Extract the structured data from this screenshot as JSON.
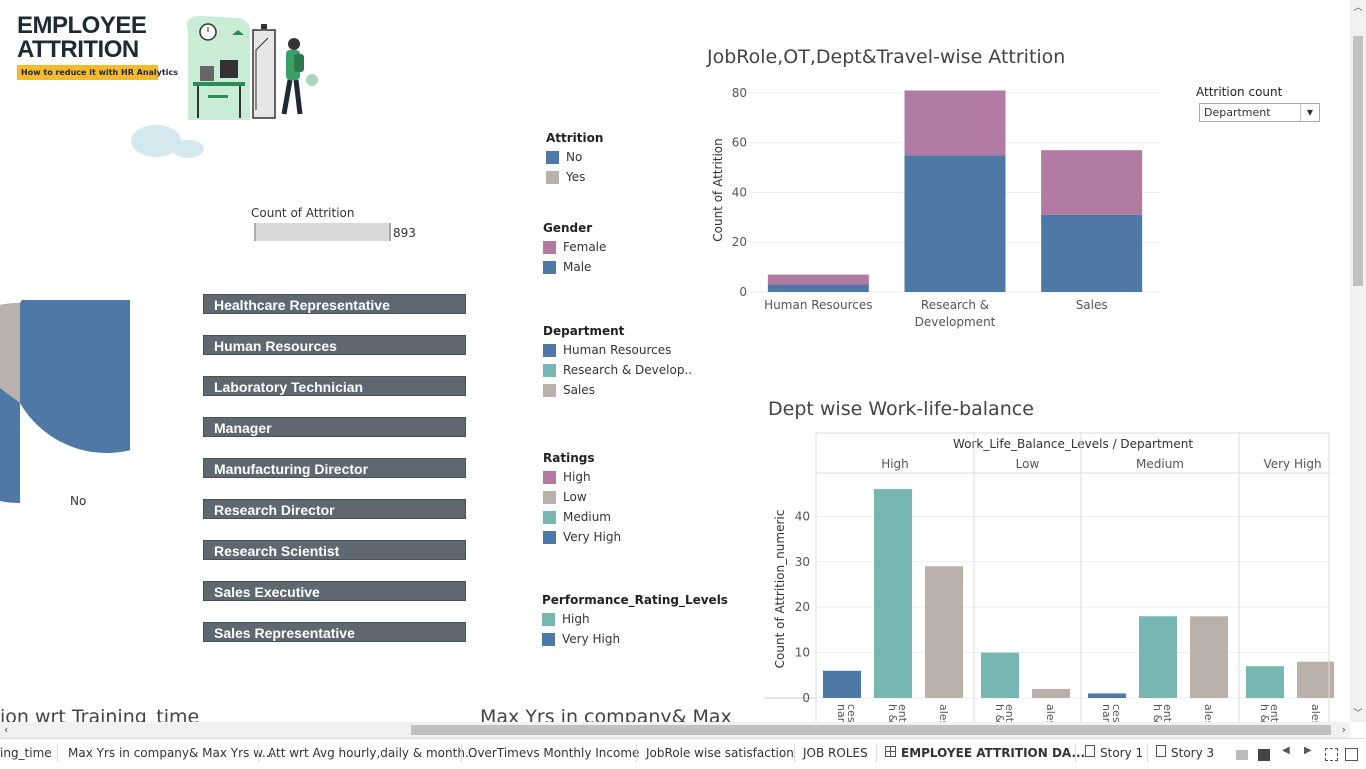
{
  "logo": {
    "line1": "EMPLOYEE",
    "line2": "ATTRITION",
    "subtitle": "How to reduce it with HR Analytics"
  },
  "count_attrition": {
    "label": "Count of Attrition",
    "value": "893",
    "fill_fraction": 1.0
  },
  "pie": {
    "label_no": "No"
  },
  "job_roles": [
    "Healthcare Representative",
    "Human Resources",
    "Laboratory Technician",
    "Manager",
    "Manufacturing Director",
    "Research Director",
    "Research Scientist",
    "Sales Executive",
    "Sales Representative"
  ],
  "legends": {
    "attrition": {
      "title": "Attrition",
      "items": [
        {
          "label": "No",
          "color": "#4e79a7"
        },
        {
          "label": "Yes",
          "color": "#bab0ac"
        }
      ]
    },
    "gender": {
      "title": "Gender",
      "items": [
        {
          "label": "Female",
          "color": "#b07aa1"
        },
        {
          "label": "Male",
          "color": "#4e79a7"
        }
      ]
    },
    "department": {
      "title": "Department",
      "items": [
        {
          "label": "Human Resources",
          "color": "#4e79a7"
        },
        {
          "label": "Research & Develop..",
          "color": "#76b7b2"
        },
        {
          "label": "Sales",
          "color": "#bab0ac"
        }
      ]
    },
    "ratings": {
      "title": "Ratings",
      "items": [
        {
          "label": "High",
          "color": "#b07aa1"
        },
        {
          "label": "Low",
          "color": "#bab0ac"
        },
        {
          "label": "Medium",
          "color": "#76b7b2"
        },
        {
          "label": "Very High",
          "color": "#4e79a7"
        }
      ]
    },
    "performance": {
      "title": "Performance_Rating_Levels",
      "items": [
        {
          "label": "High",
          "color": "#76b7b2"
        },
        {
          "label": "Very High",
          "color": "#4e79a7"
        }
      ]
    }
  },
  "filter": {
    "title": "Attrition count",
    "value": "Department"
  },
  "chart_data": [
    {
      "type": "bar",
      "stacked": true,
      "title": "JobRole,OT,Dept&Travel-wise Attrition",
      "ylabel": "Count of Attrition",
      "categories": [
        "Human Resources",
        "Research & Development",
        "Sales"
      ],
      "category_labels": [
        [
          "Human Resources"
        ],
        [
          "Research &",
          "Development"
        ],
        [
          "Sales"
        ]
      ],
      "series": [
        {
          "color": "#4e79a7",
          "values": [
            3,
            55,
            31
          ]
        },
        {
          "color": "#b07aa1",
          "values": [
            4,
            26,
            26
          ]
        }
      ],
      "ylim": [
        0,
        82
      ],
      "yticks": [
        0,
        20,
        40,
        60,
        80
      ],
      "grid": true
    },
    {
      "type": "bar",
      "title": "Dept wise Work-life-balance",
      "header": "Work_Life_Balance_Levels / Department",
      "ylabel": "Count of Attrition_numeric",
      "groups": [
        {
          "name": "High",
          "bars": [
            {
              "dept": "Human Resources",
              "value": 6,
              "color": "#4e79a7"
            },
            {
              "dept": "Research & Development",
              "value": 46,
              "color": "#76b7b2"
            },
            {
              "dept": "Sales",
              "value": 29,
              "color": "#bab0ac"
            }
          ],
          "tick_labels": [
            "nan\nces",
            "h &\nent",
            "ales"
          ]
        },
        {
          "name": "Low",
          "bars": [
            {
              "dept": "Research & Development",
              "value": 10,
              "color": "#76b7b2"
            },
            {
              "dept": "Sales",
              "value": 2,
              "color": "#bab0ac"
            }
          ],
          "tick_labels": [
            "h &\nent",
            "ales"
          ]
        },
        {
          "name": "Medium",
          "bars": [
            {
              "dept": "Human Resources",
              "value": 1,
              "color": "#4e79a7"
            },
            {
              "dept": "Research & Development",
              "value": 18,
              "color": "#76b7b2"
            },
            {
              "dept": "Sales",
              "value": 18,
              "color": "#bab0ac"
            }
          ],
          "tick_labels": [
            "nan\nces",
            "h &\nent",
            "ales"
          ]
        },
        {
          "name": "Very High",
          "bars": [
            {
              "dept": "Research & Development",
              "value": 7,
              "color": "#76b7b2"
            },
            {
              "dept": "Sales",
              "value": 8,
              "color": "#bab0ac"
            }
          ],
          "tick_labels": [
            "h &\nent",
            "ales"
          ]
        }
      ],
      "ylim": [
        0,
        48
      ],
      "yticks": [
        0,
        10,
        20,
        30,
        40
      ],
      "grid": true
    }
  ],
  "bottom_titles": {
    "left": "ion wrt Training_time",
    "mid": "Max Yrs in company& Max"
  },
  "tabs": [
    "ing_time",
    "Max Yrs in company& Max Yrs w...",
    "Att wrt Avg hourly,daily & month...",
    "OverTimevs Monthly Income",
    "JobRole wise satisfaction",
    "JOB ROLES",
    "EMPLOYEE ATTRITION DA...",
    "Story 1",
    "Story 3"
  ]
}
